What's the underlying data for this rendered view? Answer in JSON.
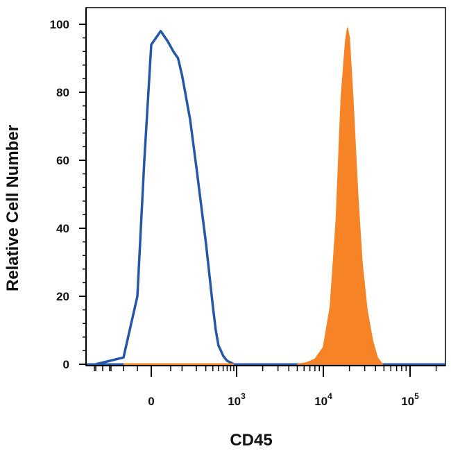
{
  "chart_data": {
    "type": "area",
    "title": "",
    "xlabel": "CD45",
    "ylabel": "Relative Cell Number",
    "x_scale": "biexponential",
    "ylim": [
      0,
      100
    ],
    "y_ticks": [
      "0",
      "20",
      "40",
      "60",
      "80",
      "100"
    ],
    "x_ticks": [
      {
        "base": "0",
        "exp": ""
      },
      {
        "base": "10",
        "exp": "3"
      },
      {
        "base": "10",
        "exp": "4"
      },
      {
        "base": "10",
        "exp": "5"
      }
    ],
    "grid": false,
    "legend": "none",
    "series": [
      {
        "style": "outline",
        "color": "#2457a8",
        "x": [
          -400,
          -200,
          -100,
          -50,
          0,
          20,
          40,
          60,
          80,
          100,
          150,
          200,
          250,
          300,
          350,
          400,
          450,
          500,
          550,
          600,
          700,
          800,
          900
        ],
        "y": [
          0,
          2,
          20,
          60,
          94,
          98,
          95,
          92,
          90,
          85,
          72,
          58,
          46,
          36,
          26,
          17,
          10,
          5.5,
          4,
          2.5,
          1,
          0.5,
          0
        ]
      },
      {
        "style": "filled",
        "color": "#f68426",
        "x": [
          5000,
          6500,
          8000,
          10000,
          12000,
          14000,
          16000,
          18000,
          19000,
          20000,
          22000,
          25000,
          28000,
          32000,
          37000,
          42000,
          48000
        ],
        "y": [
          0,
          0.5,
          1.5,
          5,
          17,
          42,
          78,
          95,
          99,
          96,
          78,
          50,
          30,
          16,
          7,
          2,
          0
        ]
      }
    ]
  }
}
